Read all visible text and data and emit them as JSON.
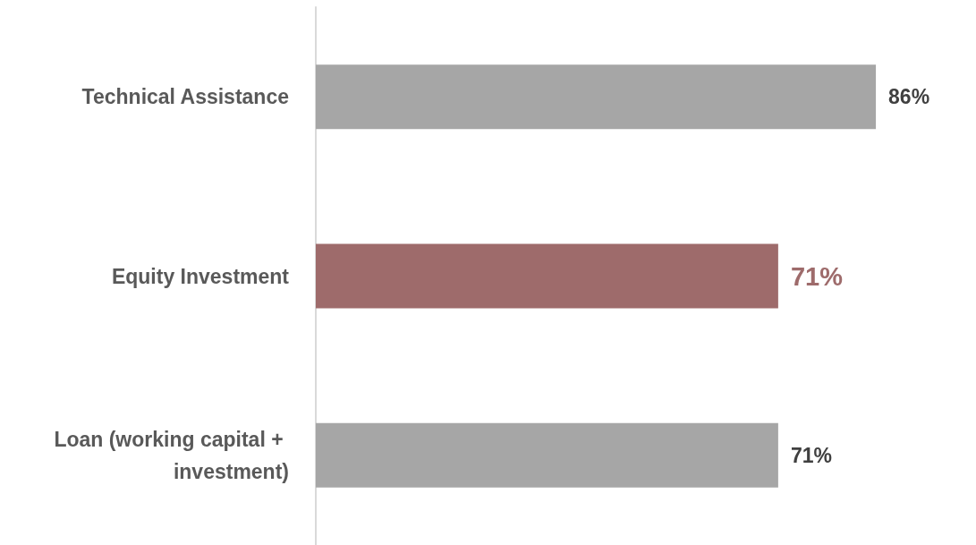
{
  "chart_data": {
    "type": "bar",
    "orientation": "horizontal",
    "categories": [
      "Technical Assistance",
      "Equity Investment",
      "Loan (working capital + investment)"
    ],
    "values": [
      86,
      71,
      71
    ],
    "colors": [
      "#a6a6a6",
      "#9e6b6b",
      "#a6a6a6"
    ],
    "value_labels": [
      "86%",
      "71%",
      "71%"
    ],
    "tick_labels": "y"
  }
}
